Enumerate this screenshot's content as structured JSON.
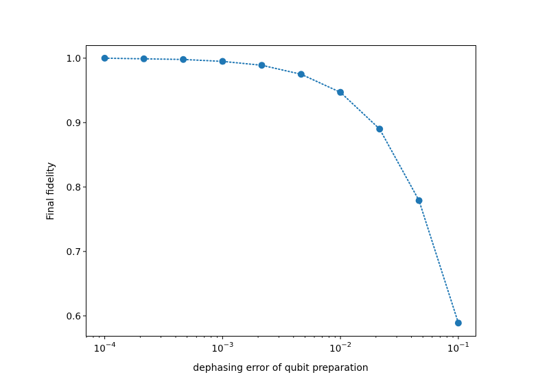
{
  "chart_data": {
    "type": "line",
    "title": "",
    "xlabel": "dephasing error of qubit preparation",
    "ylabel": "Final fidelity",
    "xscale": "log",
    "xlim": [
      7e-05,
      0.14
    ],
    "ylim": [
      0.569,
      1.019
    ],
    "grid": false,
    "legend": "none",
    "x_ticks": [
      {
        "value": 0.0001,
        "base": "10",
        "exp": "−4"
      },
      {
        "value": 0.001,
        "base": "10",
        "exp": "−3"
      },
      {
        "value": 0.01,
        "base": "10",
        "exp": "−2"
      },
      {
        "value": 0.1,
        "base": "10",
        "exp": "−1"
      }
    ],
    "y_ticks": [
      {
        "value": 0.6,
        "label": "0.6"
      },
      {
        "value": 0.7,
        "label": "0.7"
      },
      {
        "value": 0.8,
        "label": "0.8"
      },
      {
        "value": 0.9,
        "label": "0.9"
      },
      {
        "value": 1.0,
        "label": "1.0"
      }
    ],
    "series": [
      {
        "color": "#1f77b4",
        "line_style": "dotted",
        "marker": "circle",
        "x": [
          0.0001,
          0.000215,
          0.000464,
          0.001,
          0.00215,
          0.00464,
          0.01,
          0.0215,
          0.0464,
          0.1
        ],
        "y": [
          1.0,
          0.999,
          0.998,
          0.995,
          0.989,
          0.975,
          0.947,
          0.89,
          0.779,
          0.589
        ]
      }
    ]
  }
}
